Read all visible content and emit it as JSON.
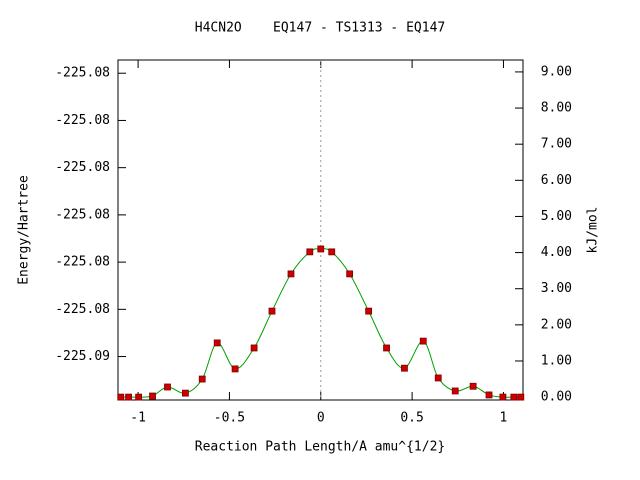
{
  "chart_data": {
    "type": "line",
    "title": "H4CN2O    EQ147 - TS1313 - EQ147",
    "xlabel": "Reaction Path Length/A amu^{1/2}",
    "ylabel": "Energy/Hartree",
    "y2label": "kJ/mol",
    "x": [
      -1.095,
      -1.052,
      -0.997,
      -0.921,
      -0.839,
      -0.741,
      -0.649,
      -0.567,
      -0.469,
      -0.365,
      -0.267,
      -0.163,
      -0.06,
      0,
      0.06,
      0.158,
      0.262,
      0.36,
      0.458,
      0.561,
      0.643,
      0.736,
      0.834,
      0.921,
      0.997,
      1.057,
      1.095
    ],
    "series": [
      {
        "axis": "y2",
        "line_color": "#00a000",
        "marker_color": "#cc0000",
        "values": [
          0,
          0,
          0,
          0.03,
          0.28,
          0.11,
          0.5,
          1.5,
          0.78,
          1.36,
          2.38,
          3.41,
          4.02,
          4.1,
          4.02,
          3.41,
          2.38,
          1.36,
          0.8,
          1.55,
          0.53,
          0.17,
          0.3,
          0.06,
          0,
          0,
          0
        ]
      }
    ],
    "xlim": [
      -1.11,
      1.107
    ],
    "xticks": [
      -1,
      -0.5,
      0,
      0.5,
      1
    ],
    "ylim": [
      -225.08566,
      -225.08206
    ],
    "yticks": [
      {
        "value": -225.0852,
        "label": "-225.09"
      },
      {
        "value": -225.0847,
        "label": "-225.08"
      },
      {
        "value": -225.0842,
        "label": "-225.08"
      },
      {
        "value": -225.0837,
        "label": "-225.08"
      },
      {
        "value": -225.0832,
        "label": "-225.08"
      },
      {
        "value": -225.0827,
        "label": "-225.08"
      },
      {
        "value": -225.0822,
        "label": "-225.08"
      }
    ],
    "y2lim": [
      -0.08,
      9.33
    ],
    "y2ticks": [
      {
        "value": 0,
        "label": "0.00"
      },
      {
        "value": 1,
        "label": "1.00"
      },
      {
        "value": 2,
        "label": "2.00"
      },
      {
        "value": 3,
        "label": "3.00"
      },
      {
        "value": 4,
        "label": "4.00"
      },
      {
        "value": 5,
        "label": "5.00"
      },
      {
        "value": 6,
        "label": "6.00"
      },
      {
        "value": 7,
        "label": "7.00"
      },
      {
        "value": 8,
        "label": "8.00"
      },
      {
        "value": 9,
        "label": "9.00"
      }
    ],
    "reference_line": {
      "x": 0,
      "style": "dotted"
    }
  }
}
